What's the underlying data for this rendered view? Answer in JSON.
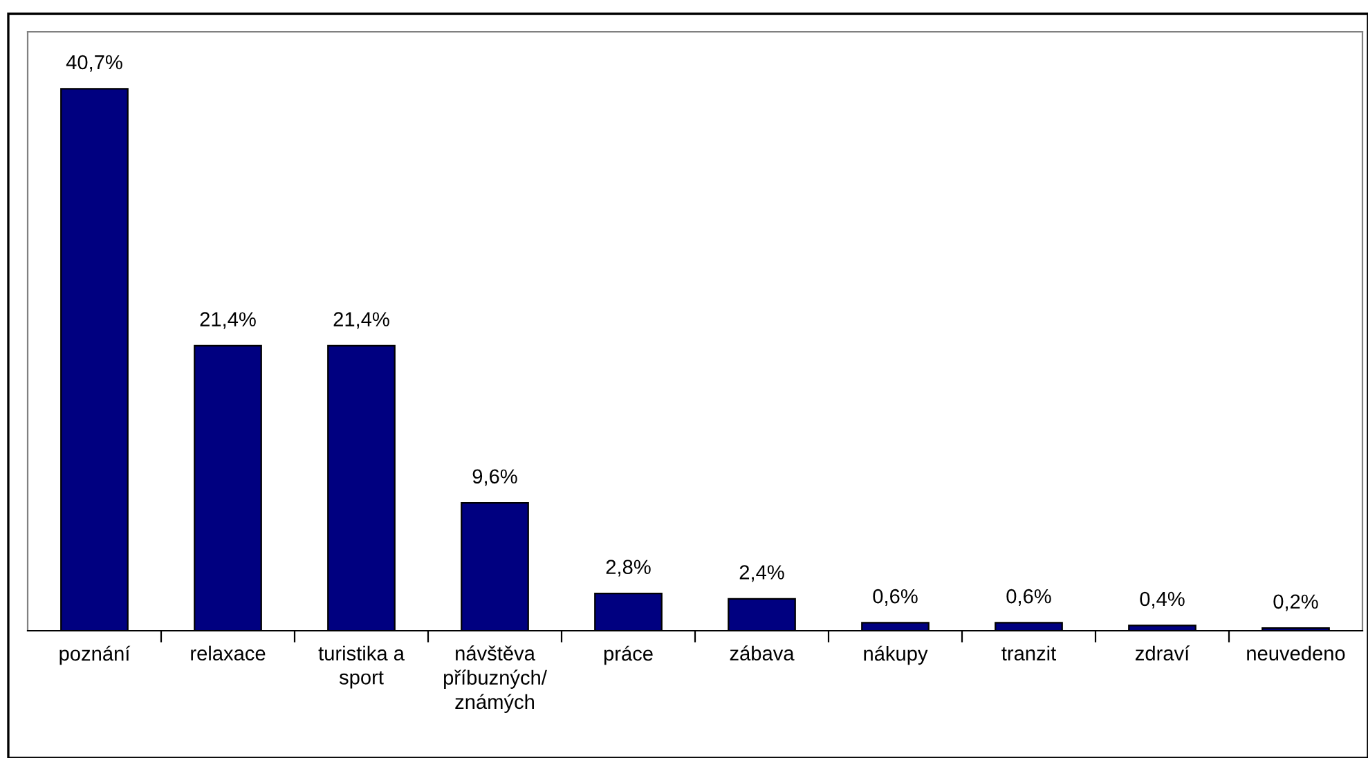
{
  "chart_data": {
    "type": "bar",
    "categories": [
      "poznání",
      "relaxace",
      "turistika a\nsport",
      "návštěva\npříbuzných/\nznámých",
      "práce",
      "zábava",
      "nákupy",
      "tranzit",
      "zdraví",
      "neuvedeno"
    ],
    "values": [
      40.7,
      21.4,
      21.4,
      9.6,
      2.8,
      2.4,
      0.6,
      0.6,
      0.4,
      0.2
    ],
    "value_labels": [
      "40,7%",
      "21,4%",
      "21,4%",
      "9,6%",
      "2,8%",
      "2,4%",
      "0,6%",
      "0,6%",
      "0,4%",
      "0,2%"
    ],
    "color": "#000080",
    "grid": false,
    "legend": false
  }
}
